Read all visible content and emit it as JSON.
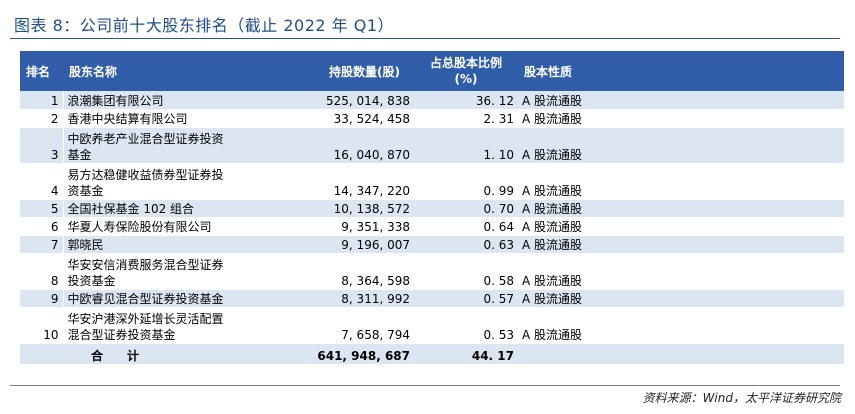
{
  "title": "图表 8：公司前十大股东排名（截止 2022 年 Q1）",
  "headers": {
    "rank": "排名",
    "name": "股东名称",
    "shares": "持股数量(股)",
    "pct_line1": "占总股本比例",
    "pct_line2": "(%)",
    "type": "股本性质"
  },
  "rows": [
    {
      "rank": "1",
      "name_1": "浪潮集团有限公司",
      "name_2": "",
      "shares": "525, 014, 838",
      "pct": "36. 12",
      "type": "A 股流通股"
    },
    {
      "rank": "2",
      "name_1": "香港中央结算有限公司",
      "name_2": "",
      "shares": "33, 524, 458",
      "pct": "2. 31",
      "type": "A 股流通股"
    },
    {
      "rank": "3",
      "name_1": "中欧养老产业混合型证券投资",
      "name_2": "基金",
      "shares": "16, 040, 870",
      "pct": "1. 10",
      "type": "A 股流通股"
    },
    {
      "rank": "4",
      "name_1": "易方达稳健收益债券型证券投",
      "name_2": "资基金",
      "shares": "14, 347, 220",
      "pct": "0. 99",
      "type": "A 股流通股"
    },
    {
      "rank": "5",
      "name_1": "全国社保基金 102 组合",
      "name_2": "",
      "shares": "10, 138, 572",
      "pct": "0. 70",
      "type": "A 股流通股"
    },
    {
      "rank": "6",
      "name_1": "华夏人寿保险股份有限公司",
      "name_2": "",
      "shares": "9, 351, 338",
      "pct": "0. 64",
      "type": "A 股流通股"
    },
    {
      "rank": "7",
      "name_1": "郭晓民",
      "name_2": "",
      "shares": "9, 196, 007",
      "pct": "0. 63",
      "type": "A 股流通股"
    },
    {
      "rank": "8",
      "name_1": "华安安信消费服务混合型证券",
      "name_2": "投资基金",
      "shares": "8, 364, 598",
      "pct": "0. 58",
      "type": "A 股流通股"
    },
    {
      "rank": "9",
      "name_1": "中欧睿见混合型证券投资基金",
      "name_2": "",
      "shares": "8, 311, 992",
      "pct": "0. 57",
      "type": "A 股流通股"
    },
    {
      "rank": "10",
      "name_1": "华安沪港深外延增长灵活配置",
      "name_2": "混合型证券投资基金",
      "shares": "7, 658, 794",
      "pct": "0. 53",
      "type": "A 股流通股"
    }
  ],
  "total": {
    "label": "合计",
    "shares": "641, 948, 687",
    "pct": "44. 17"
  },
  "source": "资料来源：Wind，太平洋证券研究院"
}
